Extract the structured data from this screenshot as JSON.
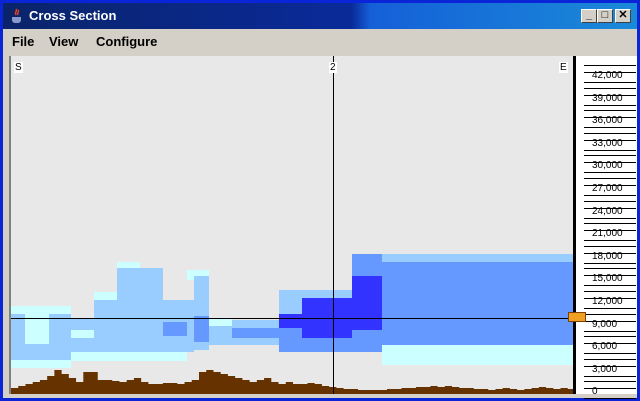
{
  "window": {
    "title": "Cross Section",
    "minimize": "_",
    "maximize": "□",
    "close": "✕"
  },
  "menu": [
    "File",
    "View",
    "Configure"
  ],
  "plot": {
    "left_label": "S",
    "center_label": "2",
    "right_label": "E"
  },
  "axis": {
    "labels": [
      "42,000",
      "39,000",
      "36,000",
      "33,000",
      "30,000",
      "27,000",
      "24,000",
      "21,000",
      "18,000",
      "15,000",
      "12,000",
      "9,000",
      "6,000",
      "3,000",
      "0"
    ],
    "slider_value": 9000,
    "slider_color": "#f0a020"
  },
  "colors": {
    "light_cyan": "#ccffff",
    "light_blue": "#99ccff",
    "medium_blue": "#6699ff",
    "dark_blue": "#3333ff",
    "terrain": "#663300",
    "background": "#e8e8e8"
  }
}
